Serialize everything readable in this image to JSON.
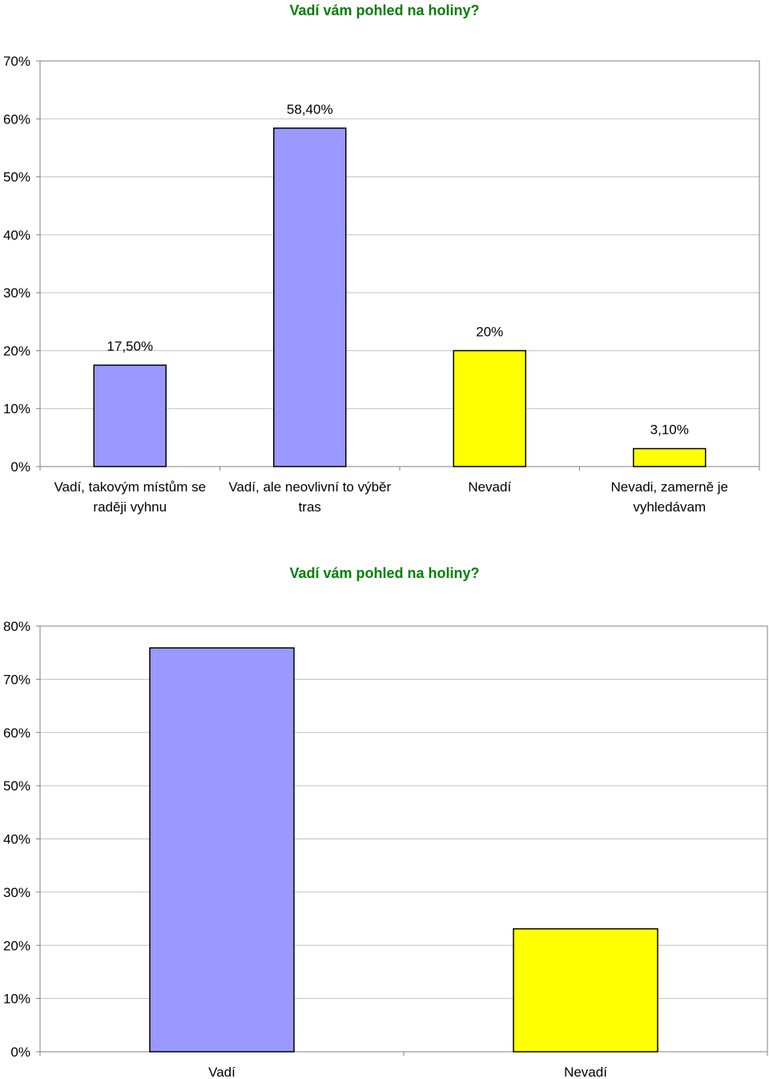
{
  "chart_data": [
    {
      "type": "bar",
      "title": "Vadí vám pohled na holiny?",
      "categories": [
        [
          "Vadí, takovým místům se",
          "raději vyhnu"
        ],
        [
          "Vadí, ale neovlivní to výběr",
          "tras"
        ],
        [
          "Nevadí"
        ],
        [
          "Nevadi, zamerně je",
          "vyhledávam"
        ]
      ],
      "values": [
        17.5,
        58.4,
        20,
        3.1
      ],
      "data_labels": [
        "17,50%",
        "58,40%",
        "20%",
        "3,10%"
      ],
      "colors": [
        "#9999ff",
        "#9999ff",
        "#ffff00",
        "#ffff00"
      ],
      "ylim": [
        0,
        70
      ],
      "yticks": [
        0,
        10,
        20,
        30,
        40,
        50,
        60,
        70
      ],
      "ytick_labels": [
        "0%",
        "10%",
        "20%",
        "30%",
        "40%",
        "50%",
        "60%",
        "70%"
      ],
      "grid": true,
      "legend": "none"
    },
    {
      "type": "bar",
      "title": "Vadí vám pohled na holiny?",
      "categories": [
        [
          "Vadí"
        ],
        [
          "Nevadí"
        ]
      ],
      "values": [
        75.9,
        23.1
      ],
      "data_labels": [],
      "colors": [
        "#9999ff",
        "#ffff00"
      ],
      "ylim": [
        0,
        80
      ],
      "yticks": [
        0,
        10,
        20,
        30,
        40,
        50,
        60,
        70,
        80
      ],
      "ytick_labels": [
        "0%",
        "10%",
        "20%",
        "30%",
        "40%",
        "50%",
        "60%",
        "70%",
        "80%"
      ],
      "grid": true,
      "legend": "none"
    }
  ]
}
